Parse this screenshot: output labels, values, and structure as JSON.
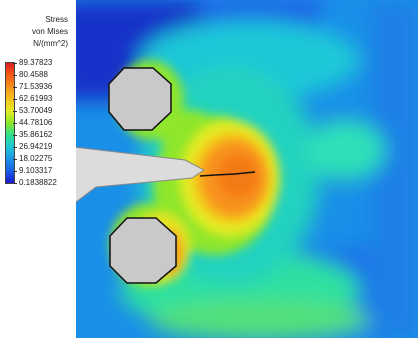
{
  "legend": {
    "title_lines": [
      "Stress",
      "von Mises",
      "N/(mm^2)"
    ],
    "values": [
      "89.37823",
      "80.4588",
      "71.53936",
      "62.61993",
      "53.70049",
      "44.78106",
      "35.86162",
      "26.94219",
      "18.02275",
      "9.103317",
      "0.1838822"
    ]
  },
  "colors": {
    "scale": [
      "#dd1e1e",
      "#f45a18",
      "#f7921a",
      "#f7c21e",
      "#e2ec22",
      "#8fe62a",
      "#2ee08c",
      "#1ec8d8",
      "#1a94e8",
      "#1a5ee6",
      "#1a1ad2"
    ],
    "background_field": "#1a8fe8",
    "hole_fill": "#c9c9c9",
    "plate_fill": "#dcdcdc"
  }
}
